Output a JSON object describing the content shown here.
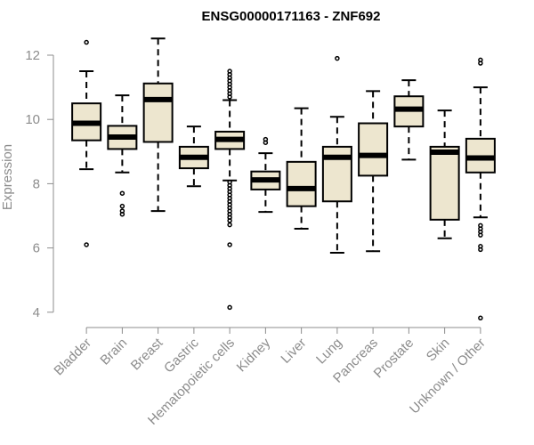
{
  "chart_data": {
    "type": "boxplot",
    "title": "ENSG00000171163 - ZNF692",
    "ylabel": "Expression",
    "xlabel": "",
    "ylim": [
      3.6,
      12.8
    ],
    "yticks": [
      4,
      6,
      8,
      10,
      12
    ],
    "colors": {
      "box_fill": "#ede6cf",
      "stroke": "#000000",
      "axis": "#8c8c8c"
    },
    "categories": [
      "Bladder",
      "Brain",
      "Breast",
      "Gastric",
      "Hematopoietic cells",
      "Kidney",
      "Liver",
      "Lung",
      "Pancreas",
      "Prostate",
      "Skin",
      "Unknown / Other"
    ],
    "boxes": [
      {
        "name": "Bladder",
        "whisker_low": 8.45,
        "q1": 9.35,
        "median": 9.88,
        "q3": 10.5,
        "whisker_high": 11.5,
        "outliers": [
          12.4,
          6.1
        ]
      },
      {
        "name": "Brain",
        "whisker_low": 8.35,
        "q1": 9.08,
        "median": 9.45,
        "q3": 9.8,
        "whisker_high": 10.75,
        "outliers": [
          7.7,
          7.3,
          7.15,
          7.05
        ]
      },
      {
        "name": "Breast",
        "whisker_low": 7.15,
        "q1": 9.3,
        "median": 10.62,
        "q3": 11.12,
        "whisker_high": 12.52,
        "outliers": []
      },
      {
        "name": "Gastric",
        "whisker_low": 7.92,
        "q1": 8.48,
        "median": 8.82,
        "q3": 9.15,
        "whisker_high": 9.78,
        "outliers": []
      },
      {
        "name": "Hematopoietic cells",
        "whisker_low": 8.1,
        "q1": 9.08,
        "median": 9.38,
        "q3": 9.62,
        "whisker_high": 10.6,
        "outliers": [
          11.5,
          11.4,
          11.3,
          11.2,
          11.1,
          11.0,
          10.9,
          10.8,
          10.7,
          8.05,
          7.95,
          7.85,
          7.75,
          7.65,
          7.55,
          7.45,
          7.35,
          7.25,
          7.15,
          7.05,
          6.95,
          6.85,
          6.72,
          6.1,
          4.15
        ]
      },
      {
        "name": "Kidney",
        "whisker_low": 7.12,
        "q1": 7.82,
        "median": 8.12,
        "q3": 8.38,
        "whisker_high": 8.95,
        "outliers": [
          9.38,
          9.28
        ]
      },
      {
        "name": "Liver",
        "whisker_low": 6.6,
        "q1": 7.3,
        "median": 7.85,
        "q3": 8.68,
        "whisker_high": 10.35,
        "outliers": []
      },
      {
        "name": "Lung",
        "whisker_low": 5.85,
        "q1": 7.45,
        "median": 8.82,
        "q3": 9.15,
        "whisker_high": 10.08,
        "outliers": [
          11.9
        ]
      },
      {
        "name": "Pancreas",
        "whisker_low": 5.9,
        "q1": 8.25,
        "median": 8.88,
        "q3": 9.88,
        "whisker_high": 10.88,
        "outliers": []
      },
      {
        "name": "Prostate",
        "whisker_low": 8.75,
        "q1": 9.78,
        "median": 10.32,
        "q3": 10.72,
        "whisker_high": 11.22,
        "outliers": []
      },
      {
        "name": "Skin",
        "whisker_low": 6.3,
        "q1": 6.88,
        "median": 8.98,
        "q3": 9.15,
        "whisker_high": 10.28,
        "outliers": []
      },
      {
        "name": "Unknown / Other",
        "whisker_low": 6.95,
        "q1": 8.35,
        "median": 8.8,
        "q3": 9.4,
        "whisker_high": 11.0,
        "outliers": [
          11.85,
          11.75,
          6.7,
          6.6,
          6.5,
          6.4,
          6.05,
          5.95,
          3.82
        ]
      }
    ]
  }
}
